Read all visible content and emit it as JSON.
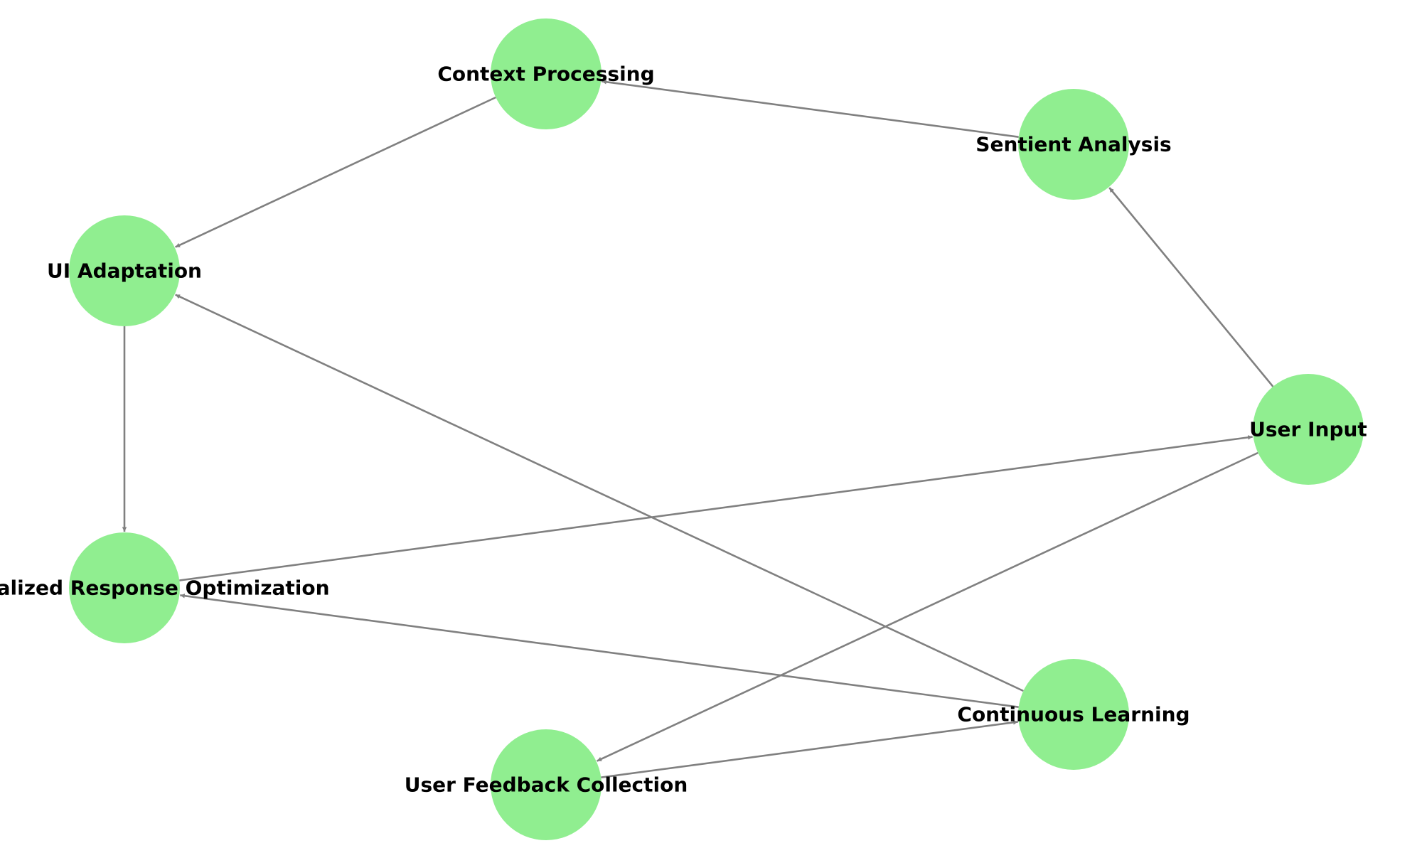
{
  "diagram": {
    "type": "directed-graph",
    "colors": {
      "node_fill": "#90ee90",
      "edge": "#808080",
      "label": "#000000",
      "background": "#ffffff"
    },
    "nodes": [
      {
        "id": "context",
        "label": "Context Processing"
      },
      {
        "id": "sentient",
        "label": "Sentient Analysis"
      },
      {
        "id": "ui",
        "label": "UI Adaptation"
      },
      {
        "id": "input",
        "label": "User Input"
      },
      {
        "id": "response",
        "label": "Personalized Response Optimization"
      },
      {
        "id": "learning",
        "label": "Continuous Learning"
      },
      {
        "id": "feedback",
        "label": "User Feedback Collection"
      }
    ],
    "edges": [
      {
        "from": "input",
        "to": "sentient"
      },
      {
        "from": "sentient",
        "to": "context"
      },
      {
        "from": "context",
        "to": "ui"
      },
      {
        "from": "ui",
        "to": "response"
      },
      {
        "from": "response",
        "to": "input"
      },
      {
        "from": "input",
        "to": "feedback"
      },
      {
        "from": "feedback",
        "to": "learning"
      },
      {
        "from": "learning",
        "to": "response"
      },
      {
        "from": "learning",
        "to": "ui"
      }
    ]
  }
}
